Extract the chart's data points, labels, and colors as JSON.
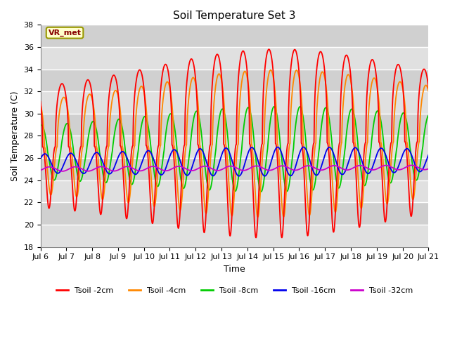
{
  "title": "Soil Temperature Set 3",
  "xlabel": "Time",
  "ylabel": "Soil Temperature (C)",
  "ylim": [
    18,
    38
  ],
  "yticks": [
    18,
    20,
    22,
    24,
    26,
    28,
    30,
    32,
    34,
    36,
    38
  ],
  "xtick_labels": [
    "Jul 6",
    "Jul 7",
    "Jul 8",
    "Jul 9",
    "Jul 10",
    "Jul 11",
    "Jul 12",
    "Jul 13",
    "Jul 14",
    "Jul 15",
    "Jul 16",
    "Jul 17",
    "Jul 18",
    "Jul 19",
    "Jul 20",
    "Jul 21"
  ],
  "colors": {
    "Tsoil -2cm": "#ff0000",
    "Tsoil -4cm": "#ff8800",
    "Tsoil -8cm": "#00cc00",
    "Tsoil -16cm": "#0000ee",
    "Tsoil -32cm": "#cc00cc"
  },
  "band_colors": [
    "#e0e0e0",
    "#d0d0d0"
  ],
  "background_color": "#d8d8d8",
  "annotation_text": "VR_met",
  "annotation_facecolor": "#ffffcc",
  "annotation_edgecolor": "#999900",
  "annotation_textcolor": "#880000"
}
